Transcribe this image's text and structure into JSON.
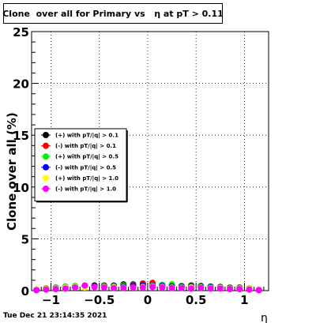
{
  "chart_data": {
    "type": "scatter",
    "title": "Clone  over all for Primary vs   η at pT > 0.11",
    "xlabel": "η",
    "ylabel": "Clone  over all (%)",
    "xlim": [
      -1.2,
      1.25
    ],
    "ylim": [
      0,
      25
    ],
    "x_ticks": [
      "−1",
      "−0.5",
      "0",
      "0.5",
      "1"
    ],
    "x_tick_values": [
      -1,
      -0.5,
      0,
      0.5,
      1
    ],
    "y_ticks": [
      "0",
      "5",
      "10",
      "15",
      "20",
      "25"
    ],
    "y_tick_values": [
      0,
      5,
      10,
      15,
      20,
      25
    ],
    "grid": true,
    "legend_position": "left",
    "series": [
      {
        "name": "(+) with pT/|q| > 0.1",
        "color": "#000000",
        "x": [
          -1.15,
          -1.05,
          -0.95,
          -0.85,
          -0.75,
          -0.65,
          -0.55,
          -0.45,
          -0.35,
          -0.25,
          -0.15,
          -0.05,
          0.05,
          0.15,
          0.25,
          0.35,
          0.45,
          0.55,
          0.65,
          0.75,
          0.85,
          0.95,
          1.05,
          1.15
        ],
        "y": [
          0.1,
          0.2,
          0.3,
          0.35,
          0.4,
          0.45,
          0.5,
          0.5,
          0.5,
          0.6,
          0.6,
          0.65,
          0.55,
          0.55,
          0.5,
          0.45,
          0.5,
          0.45,
          0.4,
          0.35,
          0.3,
          0.3,
          0.2,
          0.1
        ]
      },
      {
        "name": "(-) with pT/|q| > 0.1",
        "color": "#ff0000",
        "x": [
          -1.15,
          -1.05,
          -0.95,
          -0.85,
          -0.75,
          -0.65,
          -0.55,
          -0.45,
          -0.35,
          -0.25,
          -0.15,
          -0.05,
          0.05,
          0.15,
          0.25,
          0.35,
          0.45,
          0.55,
          0.65,
          0.75,
          0.85,
          0.95,
          1.05,
          1.15
        ],
        "y": [
          0.1,
          0.2,
          0.25,
          0.3,
          0.35,
          0.4,
          0.4,
          0.45,
          0.45,
          0.5,
          0.55,
          0.7,
          0.75,
          0.5,
          0.45,
          0.4,
          0.4,
          0.35,
          0.35,
          0.3,
          0.3,
          0.25,
          0.2,
          0.1
        ]
      },
      {
        "name": "(+) with pT/|q| > 0.5",
        "color": "#00ee00",
        "x": [
          -1.15,
          -1.05,
          -0.95,
          -0.85,
          -0.75,
          -0.65,
          -0.55,
          -0.45,
          -0.35,
          -0.25,
          -0.15,
          -0.05,
          0.05,
          0.15,
          0.25,
          0.35,
          0.45,
          0.55,
          0.65,
          0.75,
          0.85,
          0.95,
          1.05,
          1.15
        ],
        "y": [
          0.1,
          0.15,
          0.3,
          0.4,
          0.45,
          0.4,
          0.4,
          0.45,
          0.5,
          0.5,
          0.45,
          0.5,
          0.5,
          0.55,
          0.6,
          0.45,
          0.4,
          0.4,
          0.35,
          0.3,
          0.3,
          0.25,
          0.2,
          0.05
        ]
      },
      {
        "name": "(-) with pT/|q| > 0.5",
        "color": "#0000ff",
        "x": [
          -1.15,
          -1.05,
          -0.95,
          -0.85,
          -0.75,
          -0.65,
          -0.55,
          -0.45,
          -0.35,
          -0.25,
          -0.15,
          -0.05,
          0.05,
          0.15,
          0.25,
          0.35,
          0.45,
          0.55,
          0.65,
          0.75,
          0.85,
          0.95,
          1.05,
          1.15
        ],
        "y": [
          0.05,
          0.15,
          0.2,
          0.3,
          0.35,
          0.35,
          0.4,
          0.4,
          0.45,
          0.4,
          0.45,
          0.5,
          0.45,
          0.45,
          0.4,
          0.4,
          0.35,
          0.35,
          0.3,
          0.25,
          0.25,
          0.2,
          0.15,
          0.05
        ]
      },
      {
        "name": "(+) with pT/|q| > 1.0",
        "color": "#ffff00",
        "x": [
          -1.15,
          -1.05,
          -0.95,
          -0.85,
          -0.75,
          -0.65,
          -0.55,
          -0.45,
          -0.35,
          -0.25,
          -0.15,
          -0.05,
          0.05,
          0.15,
          0.25,
          0.35,
          0.45,
          0.55,
          0.65,
          0.75,
          0.85,
          0.95,
          1.05,
          1.15
        ],
        "y": [
          0.1,
          0.15,
          0.2,
          0.3,
          0.35,
          0.3,
          0.35,
          0.35,
          0.35,
          0.3,
          0.3,
          0.35,
          0.4,
          0.35,
          0.3,
          0.3,
          0.3,
          0.3,
          0.25,
          0.25,
          0.2,
          0.2,
          0.15,
          0.1
        ]
      },
      {
        "name": "(-) with pT/|q| > 1.0",
        "color": "#ff00ff",
        "x": [
          -1.15,
          -1.05,
          -0.95,
          -0.85,
          -0.75,
          -0.65,
          -0.55,
          -0.45,
          -0.35,
          -0.25,
          -0.15,
          -0.05,
          0.05,
          0.15,
          0.25,
          0.35,
          0.45,
          0.55,
          0.65,
          0.75,
          0.85,
          0.95,
          1.05,
          1.15
        ],
        "y": [
          0.05,
          0.1,
          0.15,
          0.2,
          0.3,
          0.5,
          0.35,
          0.3,
          0.25,
          0.25,
          0.3,
          0.3,
          0.35,
          0.3,
          0.25,
          0.25,
          0.2,
          0.25,
          0.2,
          0.2,
          0.15,
          0.15,
          0.1,
          0.05
        ]
      }
    ]
  },
  "footer": {
    "timestamp": "Tue Dec 21 23:14:35 2021"
  }
}
